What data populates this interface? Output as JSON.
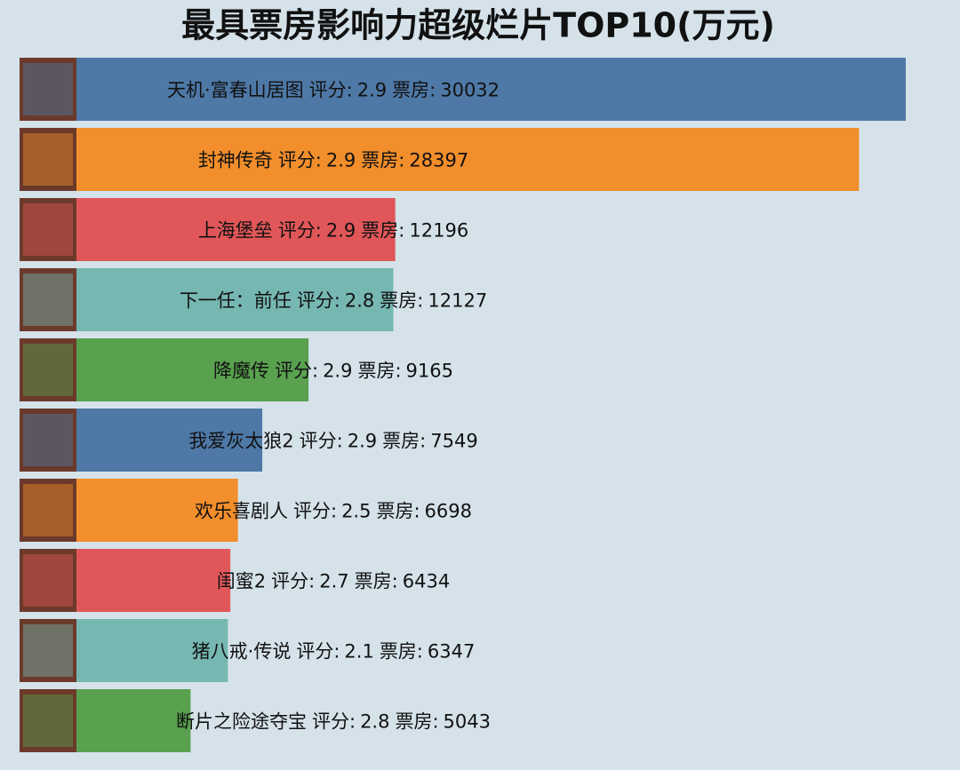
{
  "chart_data": {
    "type": "bar",
    "orientation": "horizontal",
    "title": "最具票房影响力超级烂片TOP10(万元)",
    "categories": [
      "天机·富春山居图",
      "封神传奇",
      "上海堡垒",
      "下一任：前任",
      "降魔传",
      "我爱灰太狼2",
      "欢乐喜剧人",
      "闺蜜2",
      "猪八戒·传说",
      "断片之险途夺宝"
    ],
    "rating_label": "评分:",
    "ratings": [
      2.9,
      2.9,
      2.9,
      2.8,
      2.9,
      2.9,
      2.5,
      2.7,
      2.1,
      2.8
    ],
    "value_label": "票房:",
    "values": [
      30032,
      28397,
      12196,
      12127,
      9165,
      7549,
      6698,
      6434,
      6347,
      5043
    ],
    "colors": [
      "#4e79a7",
      "#f28e2b",
      "#e15759",
      "#76b7b2",
      "#59a14f",
      "#4e79a7",
      "#f28e2b",
      "#e15759",
      "#76b7b2",
      "#59a14f"
    ]
  }
}
